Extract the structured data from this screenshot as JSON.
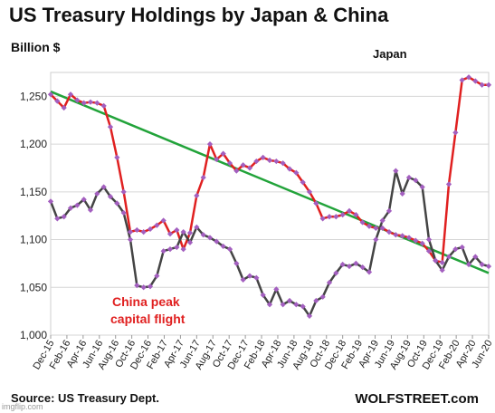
{
  "chart_data": {
    "type": "line",
    "title": "US Treasury Holdings  by Japan & China",
    "ylabel": "Billion $",
    "ylim": [
      1000,
      1275
    ],
    "yticks": [
      "1,000",
      "1,050",
      "1,100",
      "1,150",
      "1,200",
      "1,250"
    ],
    "ytick_values": [
      1000,
      1050,
      1100,
      1150,
      1200,
      1250
    ],
    "grid": true,
    "xtick_labels": [
      "Dec-15",
      "Feb-16",
      "Apr-16",
      "Jun-16",
      "Aug-16",
      "Oct-16",
      "Dec-16",
      "Feb-17",
      "Apr-17",
      "Jun-17",
      "Aug-17",
      "Oct-17",
      "Dec-17",
      "Feb-18",
      "Apr-18",
      "Jun-18",
      "Aug-18",
      "Oct-18",
      "Dec-18",
      "Feb-19",
      "Apr-19",
      "Jun-19",
      "Aug-19",
      "Oct-19",
      "Dec-19",
      "Feb-20",
      "Apr-20",
      "Jun-20"
    ],
    "series": [
      {
        "name": "Japan",
        "color": "#e02020",
        "values": [
          1252,
          1245,
          1238,
          1252,
          1246,
          1243,
          1244,
          1243,
          1240,
          1218,
          1186,
          1150,
          1108,
          1110,
          1108,
          1111,
          1115,
          1120,
          1106,
          1110,
          1090,
          1107,
          1146,
          1165,
          1200,
          1184,
          1190,
          1180,
          1172,
          1178,
          1175,
          1182,
          1186,
          1183,
          1182,
          1180,
          1174,
          1170,
          1160,
          1150,
          1138,
          1122,
          1124,
          1124,
          1126,
          1130,
          1126,
          1118,
          1114,
          1112,
          1112,
          1108,
          1105,
          1104,
          1102,
          1099,
          1096,
          1088,
          1078,
          1076,
          1158,
          1212,
          1267,
          1270,
          1266,
          1262,
          1262
        ]
      },
      {
        "name": "China",
        "color": "#444444",
        "values": [
          1140,
          1122,
          1124,
          1133,
          1136,
          1142,
          1131,
          1148,
          1155,
          1145,
          1138,
          1128,
          1100,
          1052,
          1050,
          1051,
          1062,
          1088,
          1090,
          1092,
          1108,
          1097,
          1113,
          1105,
          1102,
          1098,
          1093,
          1090,
          1075,
          1058,
          1062,
          1060,
          1042,
          1032,
          1048,
          1032,
          1036,
          1032,
          1030,
          1020,
          1036,
          1040,
          1055,
          1065,
          1074,
          1072,
          1075,
          1071,
          1066,
          1100,
          1120,
          1130,
          1172,
          1148,
          1165,
          1162,
          1155,
          1100,
          1078,
          1068,
          1082,
          1090,
          1092,
          1074,
          1082,
          1074,
          1072
        ]
      }
    ],
    "trendline": {
      "start": 1255,
      "end": 1065,
      "color": "#22a33a"
    },
    "annotations": [
      {
        "text": "Japan",
        "series": "Japan"
      },
      {
        "text": "China peak",
        "series": "China"
      },
      {
        "text": "capital flight",
        "series": "China"
      }
    ]
  },
  "footer": {
    "source": "Source: US Treasury Dept.",
    "brand": "WOLFSTREET.com",
    "watermark": "imgflip.com"
  }
}
